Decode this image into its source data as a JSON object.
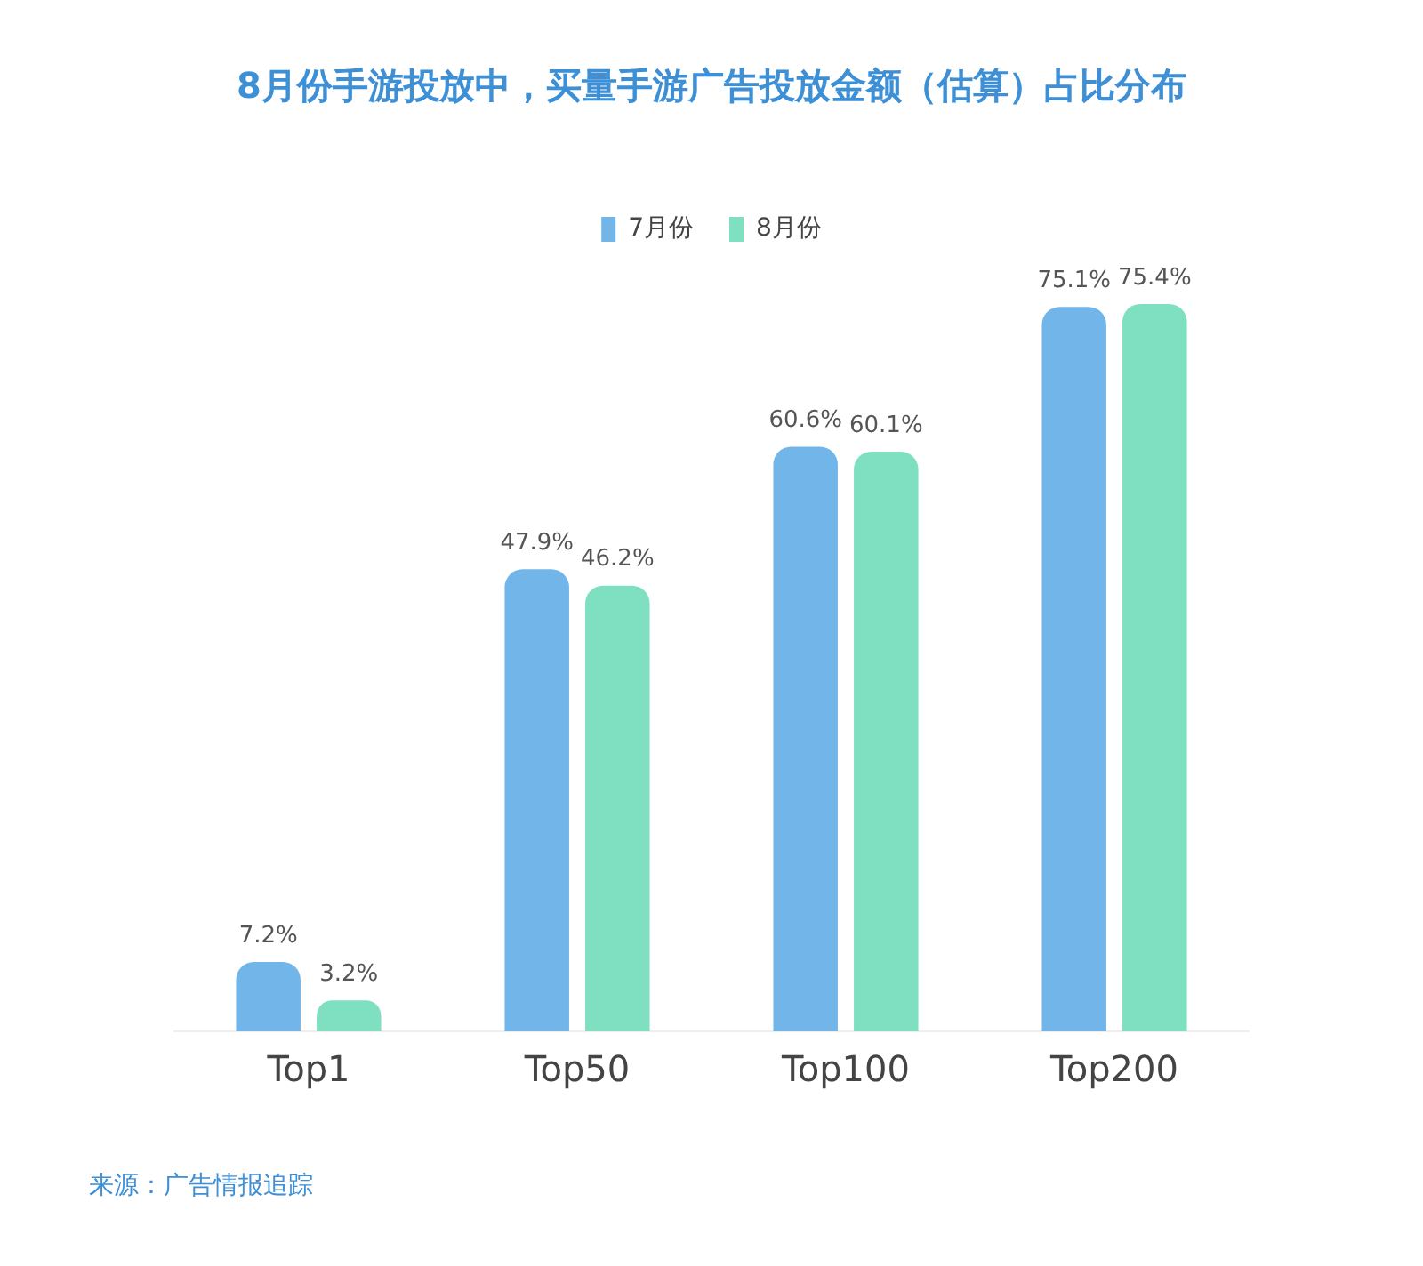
{
  "chart_data": {
    "type": "bar",
    "title": "8月份手游投放中，买量手游广告投放金额（估算）占比分布",
    "categories": [
      "Top1",
      "Top50",
      "Top100",
      "Top200"
    ],
    "series": [
      {
        "name": "7月份",
        "color": "#72b5e8",
        "values": [
          7.2,
          47.9,
          60.6,
          75.1
        ],
        "value_labels": [
          "7.2%",
          "47.9%",
          "60.6%",
          "75.1%"
        ]
      },
      {
        "name": "8月份",
        "color": "#7ee0c0",
        "values": [
          3.2,
          46.2,
          60.1,
          75.4
        ],
        "value_labels": [
          "3.2%",
          "46.2%",
          "60.1%",
          "75.4%"
        ]
      }
    ],
    "legend": "top",
    "annotations": [
      "来源：广告情报追踪"
    ]
  }
}
